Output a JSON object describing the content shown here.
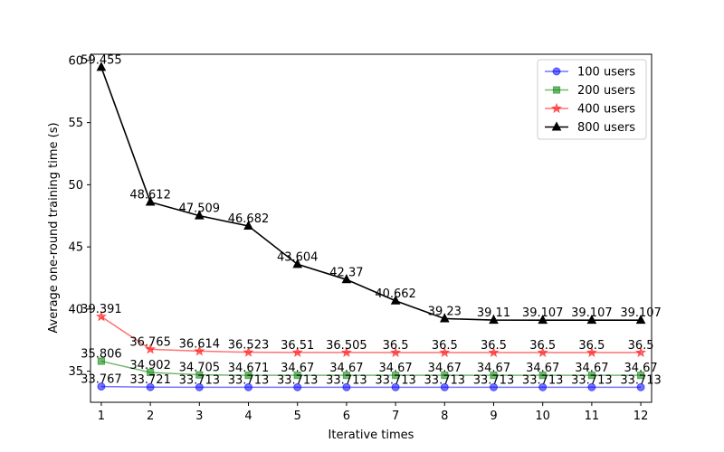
{
  "chart_data": {
    "type": "line",
    "title": "",
    "xlabel": "Iterative times",
    "ylabel": "Average one-round training time (s)",
    "x": [
      1,
      2,
      3,
      4,
      5,
      6,
      7,
      8,
      9,
      10,
      11,
      12
    ],
    "xlim": [
      0.78,
      12.22
    ],
    "ylim": [
      32.5,
      60.5
    ],
    "yticks": [
      35,
      40,
      45,
      50,
      55,
      60
    ],
    "grid": false,
    "legend_position": "top-right",
    "series": [
      {
        "name": "100 users",
        "color": "#0000ff",
        "marker": "circle",
        "alpha": 0.55,
        "values": [
          33.767,
          33.721,
          33.713,
          33.713,
          33.713,
          33.713,
          33.713,
          33.713,
          33.713,
          33.713,
          33.713,
          33.713
        ],
        "labels": [
          "33.767",
          "33.721",
          "33.713",
          "33.713",
          "33.713",
          "33.713",
          "33.713",
          "33.713",
          "33.713",
          "33.713",
          "33.713",
          "33.713"
        ]
      },
      {
        "name": "200 users",
        "color": "#008000",
        "marker": "square",
        "alpha": 0.55,
        "values": [
          35.806,
          34.902,
          34.705,
          34.671,
          34.67,
          34.67,
          34.67,
          34.67,
          34.67,
          34.67,
          34.67,
          34.67
        ],
        "labels": [
          "35.806",
          "34.902",
          "34.705",
          "34.671",
          "34.67",
          "34.67",
          "34.67",
          "34.67",
          "34.67",
          "34.67",
          "34.67",
          "34.67"
        ]
      },
      {
        "name": "400 users",
        "color": "#ff0000",
        "marker": "star",
        "alpha": 0.55,
        "values": [
          39.391,
          36.765,
          36.614,
          36.523,
          36.51,
          36.505,
          36.5,
          36.5,
          36.5,
          36.5,
          36.5,
          36.5
        ],
        "labels": [
          "39.391",
          "36.765",
          "36.614",
          "36.523",
          "36.51",
          "36.505",
          "36.5",
          "36.5",
          "36.5",
          "36.5",
          "36.5",
          "36.5"
        ]
      },
      {
        "name": "800 users",
        "color": "#000000",
        "marker": "triangle",
        "alpha": 1.0,
        "values": [
          59.455,
          48.612,
          47.509,
          46.682,
          43.604,
          42.37,
          40.662,
          39.23,
          39.11,
          39.107,
          39.107,
          39.107
        ],
        "labels": [
          "59.455",
          "48.612",
          "47.509",
          "46.682",
          "43.604",
          "42.37",
          "40.662",
          "39.23",
          "39.11",
          "39.107",
          "39.107",
          "39.107"
        ]
      }
    ]
  }
}
